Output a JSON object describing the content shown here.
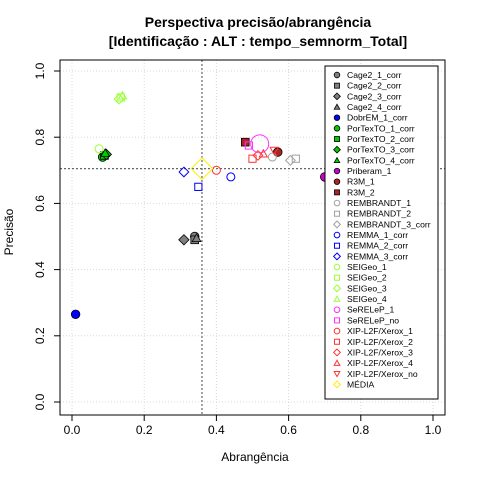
{
  "chart_data": {
    "type": "scatter",
    "title": "Perspectiva precisão/abrangência",
    "subtitle": "[Identificação : ALT : tempo_semnorm_Total]",
    "xlabel": "Abrangência",
    "ylabel": "Precisão",
    "xlim": [
      0,
      1
    ],
    "ylim": [
      0,
      1
    ],
    "xticks": [
      "0.0",
      "0.2",
      "0.4",
      "0.6",
      "0.8",
      "1.0"
    ],
    "yticks": [
      "0.0",
      "0.2",
      "0.4",
      "0.6",
      "0.8",
      "1.0"
    ],
    "grid": true,
    "legend_position": "right",
    "reference_lines": {
      "x": 0.36,
      "y": 0.705
    },
    "series": [
      {
        "name": "Cage2_1_corr",
        "symbol": "circle-filled",
        "color": "#808080",
        "x": 0.34,
        "y": 0.5
      },
      {
        "name": "Cage2_2_corr",
        "symbol": "square-filled",
        "color": "#808080",
        "x": 0.34,
        "y": 0.49
      },
      {
        "name": "Cage2_3_corr",
        "symbol": "diamond-filled",
        "color": "#808080",
        "x": 0.31,
        "y": 0.49
      },
      {
        "name": "Cage2_4_corr",
        "symbol": "triangle-filled",
        "color": "#808080",
        "x": 0.345,
        "y": 0.495
      },
      {
        "name": "DobrEM_1_corr",
        "symbol": "circle-filled",
        "color": "#0000ff",
        "x": 0.01,
        "y": 0.265
      },
      {
        "name": "PorTexTO_1_corr",
        "symbol": "circle-filled",
        "color": "#00cc00",
        "x": 0.085,
        "y": 0.74
      },
      {
        "name": "PorTexTO_2_corr",
        "symbol": "square-filled",
        "color": "#00cc00",
        "x": 0.09,
        "y": 0.745
      },
      {
        "name": "PorTexTO_3_corr",
        "symbol": "diamond-filled",
        "color": "#00cc00",
        "x": 0.095,
        "y": 0.748
      },
      {
        "name": "PorTexTO_4_corr",
        "symbol": "triangle-filled",
        "color": "#00cc00",
        "x": 0.092,
        "y": 0.752
      },
      {
        "name": "Priberam_1",
        "symbol": "circle-filled",
        "color": "#cc00cc",
        "x": 0.7,
        "y": 0.68
      },
      {
        "name": "R3M_1",
        "symbol": "circle-filled",
        "color": "#b22222",
        "x": 0.57,
        "y": 0.755
      },
      {
        "name": "R3M_2",
        "symbol": "square-filled",
        "color": "#b22222",
        "x": 0.48,
        "y": 0.785
      },
      {
        "name": "REMBRANDT_1",
        "symbol": "circle-open",
        "color": "#a0a0a0",
        "x": 0.555,
        "y": 0.74
      },
      {
        "name": "REMBRANDT_2",
        "symbol": "square-open",
        "color": "#a0a0a0",
        "x": 0.62,
        "y": 0.735
      },
      {
        "name": "REMBRANDT_3_corr",
        "symbol": "diamond-open",
        "color": "#a0a0a0",
        "x": 0.605,
        "y": 0.73
      },
      {
        "name": "REMMA_1_corr",
        "symbol": "circle-open",
        "color": "#0000ff",
        "x": 0.44,
        "y": 0.68
      },
      {
        "name": "REMMA_2_corr",
        "symbol": "square-open",
        "color": "#0000ff",
        "x": 0.35,
        "y": 0.65
      },
      {
        "name": "REMMA_3_corr",
        "symbol": "diamond-open",
        "color": "#0000ff",
        "x": 0.31,
        "y": 0.695
      },
      {
        "name": "SEIGeo_1",
        "symbol": "circle-open",
        "color": "#99ff33",
        "x": 0.075,
        "y": 0.765
      },
      {
        "name": "SEIGeo_2",
        "symbol": "square-open",
        "color": "#99ff33",
        "x": 0.135,
        "y": 0.92
      },
      {
        "name": "SEIGeo_3",
        "symbol": "diamond-open",
        "color": "#99ff33",
        "x": 0.13,
        "y": 0.915
      },
      {
        "name": "SEIGeo_4",
        "symbol": "triangle-open",
        "color": "#99ff33",
        "x": 0.14,
        "y": 0.925
      },
      {
        "name": "SeRELeP_1",
        "symbol": "circle-open",
        "color": "#ff33ff",
        "x": 0.52,
        "y": 0.78
      },
      {
        "name": "SeRELeP_no",
        "symbol": "square-open",
        "color": "#ff33ff",
        "x": 0.49,
        "y": 0.775
      },
      {
        "name": "XIP-L2F/Xerox_1",
        "symbol": "circle-open",
        "color": "#ff3333",
        "x": 0.4,
        "y": 0.7
      },
      {
        "name": "XIP-L2F/Xerox_2",
        "symbol": "square-open",
        "color": "#ff3333",
        "x": 0.5,
        "y": 0.735
      },
      {
        "name": "XIP-L2F/Xerox_3",
        "symbol": "diamond-open",
        "color": "#ff3333",
        "x": 0.515,
        "y": 0.745
      },
      {
        "name": "XIP-L2F/Xerox_4",
        "symbol": "triangle-open",
        "color": "#ff3333",
        "x": 0.53,
        "y": 0.75
      },
      {
        "name": "XIP-L2F/Xerox_no",
        "symbol": "triangle-down-open",
        "color": "#ff3333",
        "x": 0.56,
        "y": 0.76
      },
      {
        "name": "MÉDIA",
        "symbol": "diamond-open",
        "color": "#ffee00",
        "x": 0.36,
        "y": 0.705
      }
    ]
  }
}
